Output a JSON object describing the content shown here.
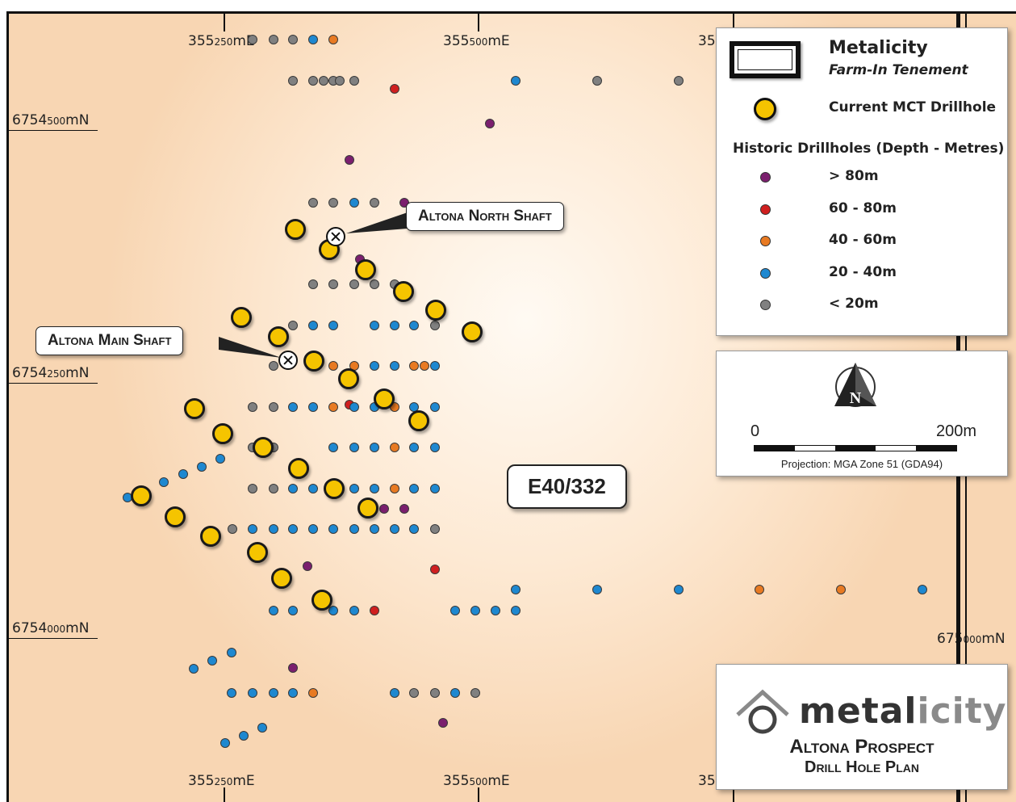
{
  "colors": {
    "gt80": "#7b1f6e",
    "r60_80": "#d01f1f",
    "r40_60": "#e87a22",
    "r20_40": "#1e88d0",
    "lt20": "#808080",
    "mct": "#f5c400"
  },
  "axes": {
    "easting_top": [
      {
        "big": "355",
        "small": "250",
        "unit": "mE"
      },
      {
        "big": "355",
        "small": "500",
        "unit": "mE"
      },
      {
        "big": "355",
        "small": "",
        "unit": ""
      }
    ],
    "easting_bottom": [
      {
        "big": "355",
        "small": "250",
        "unit": "mE"
      },
      {
        "big": "355",
        "small": "500",
        "unit": "mE"
      },
      {
        "big": "355",
        "small": "",
        "unit": ""
      }
    ],
    "northing": [
      {
        "big": "6754",
        "small": "500",
        "unit": "mN"
      },
      {
        "big": "6754",
        "small": "250",
        "unit": "mN"
      },
      {
        "big": "6754",
        "small": "000",
        "unit": "mN"
      }
    ],
    "right_edge_northing": {
      "big": "675",
      "small": "000",
      "unit": "mN"
    }
  },
  "labels": {
    "north_shaft": "Altona North Shaft",
    "main_shaft": "Altona Main Shaft",
    "tenement": "E40/332"
  },
  "legend": {
    "title": "Metalicity",
    "subtitle": "Farm-In Tenement",
    "mct_label": "Current MCT Drillhole",
    "historic_title": "Historic Drillholes (Depth - Metres)",
    "items": [
      {
        "label": "> 80m",
        "color_key": "gt80"
      },
      {
        "label": "60 - 80m",
        "color_key": "r60_80"
      },
      {
        "label": "40 - 60m",
        "color_key": "r40_60"
      },
      {
        "label": "20 - 40m",
        "color_key": "r20_40"
      },
      {
        "label": "< 20m",
        "color_key": "lt20"
      }
    ]
  },
  "scale": {
    "north_letter": "N",
    "start": "0",
    "end": "200m",
    "projection": "Projection: MGA Zone 51 (GDA94)"
  },
  "title_block": {
    "logo_dark": "metal",
    "logo_light": "icity",
    "line1": "Altona Prospect",
    "line2": "Drill Hole Plan"
  }
}
